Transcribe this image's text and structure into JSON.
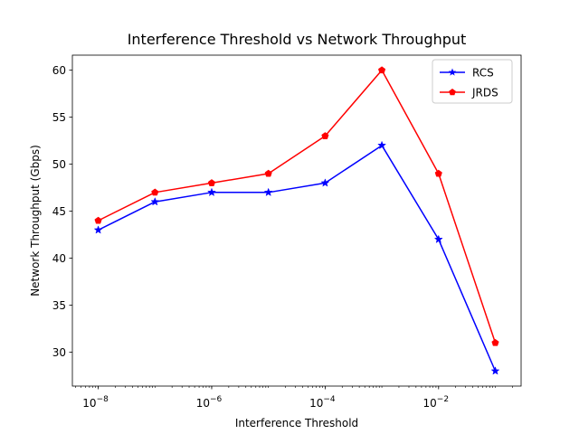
{
  "chart_data": {
    "type": "line",
    "title": "Interference Threshold vs Network Throughput",
    "xlabel": "Interference Threshold",
    "ylabel": "Network Throughput (Gbps)",
    "x_scale": "log",
    "x": [
      1e-08,
      1e-07,
      1e-06,
      1e-05,
      0.0001,
      0.001,
      0.01,
      0.1
    ],
    "xlim": [
      3.5e-09,
      0.285
    ],
    "ylim": [
      26.4,
      61.6
    ],
    "x_ticks": [
      {
        "value": 1e-08,
        "base": "10",
        "exp": "−8"
      },
      {
        "value": 1e-06,
        "base": "10",
        "exp": "−6"
      },
      {
        "value": 0.0001,
        "base": "10",
        "exp": "−4"
      },
      {
        "value": 0.01,
        "base": "10",
        "exp": "−2"
      }
    ],
    "y_ticks": [
      30,
      35,
      40,
      45,
      50,
      55,
      60
    ],
    "grid": false,
    "legend_position": "top-right",
    "series": [
      {
        "name": "RCS",
        "color": "#0000ff",
        "marker": "star",
        "values": [
          43,
          46,
          47,
          47,
          48,
          52,
          42,
          28
        ]
      },
      {
        "name": "JRDS",
        "color": "#ff0000",
        "marker": "pentagon",
        "values": [
          44,
          47,
          48,
          49,
          53,
          60,
          49,
          31
        ]
      }
    ]
  }
}
